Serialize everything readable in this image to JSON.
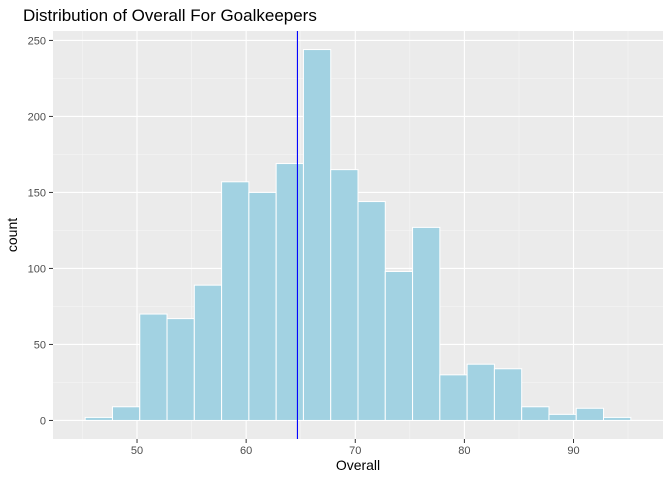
{
  "chart_data": {
    "type": "bar",
    "title": "Distribution of Overall For Goalkeepers",
    "xlabel": "Overall",
    "ylabel": "count",
    "bin_width": 2.5,
    "bins": [
      {
        "x0": 45.25,
        "x1": 47.75,
        "count": 2
      },
      {
        "x0": 47.75,
        "x1": 50.25,
        "count": 9
      },
      {
        "x0": 50.25,
        "x1": 52.75,
        "count": 70
      },
      {
        "x0": 52.75,
        "x1": 55.25,
        "count": 67
      },
      {
        "x0": 55.25,
        "x1": 57.75,
        "count": 89
      },
      {
        "x0": 57.75,
        "x1": 60.25,
        "count": 157
      },
      {
        "x0": 60.25,
        "x1": 62.75,
        "count": 150
      },
      {
        "x0": 62.75,
        "x1": 65.25,
        "count": 169
      },
      {
        "x0": 65.25,
        "x1": 67.75,
        "count": 244
      },
      {
        "x0": 67.75,
        "x1": 70.25,
        "count": 165
      },
      {
        "x0": 70.25,
        "x1": 72.75,
        "count": 144
      },
      {
        "x0": 72.75,
        "x1": 75.25,
        "count": 98
      },
      {
        "x0": 75.25,
        "x1": 77.75,
        "count": 127
      },
      {
        "x0": 77.75,
        "x1": 80.25,
        "count": 30
      },
      {
        "x0": 80.25,
        "x1": 82.75,
        "count": 37
      },
      {
        "x0": 82.75,
        "x1": 85.25,
        "count": 34
      },
      {
        "x0": 85.25,
        "x1": 87.75,
        "count": 9
      },
      {
        "x0": 87.75,
        "x1": 90.25,
        "count": 4
      },
      {
        "x0": 90.25,
        "x1": 92.75,
        "count": 8
      },
      {
        "x0": 92.75,
        "x1": 95.25,
        "count": 2
      }
    ],
    "vline": {
      "x": 64.7,
      "color": "#0000ff"
    },
    "xlim": [
      42.3,
      98.2
    ],
    "ylim": [
      -12.2,
      256.2
    ],
    "x_ticks": [
      50,
      60,
      70,
      80,
      90
    ],
    "x_minor_ticks": [
      45,
      55,
      65,
      75,
      85,
      95
    ],
    "y_ticks": [
      0,
      50,
      100,
      150,
      200,
      250
    ],
    "y_minor_ticks": [
      25,
      75,
      125,
      175,
      225
    ],
    "grid": true,
    "colors": {
      "bar_fill": "#a2d2e2",
      "bar_stroke": "#ffffff",
      "panel_bg": "#ebebeb",
      "grid_major": "#ffffff",
      "grid_minor": "#f5f5f5",
      "vline": "#0000ff"
    }
  }
}
